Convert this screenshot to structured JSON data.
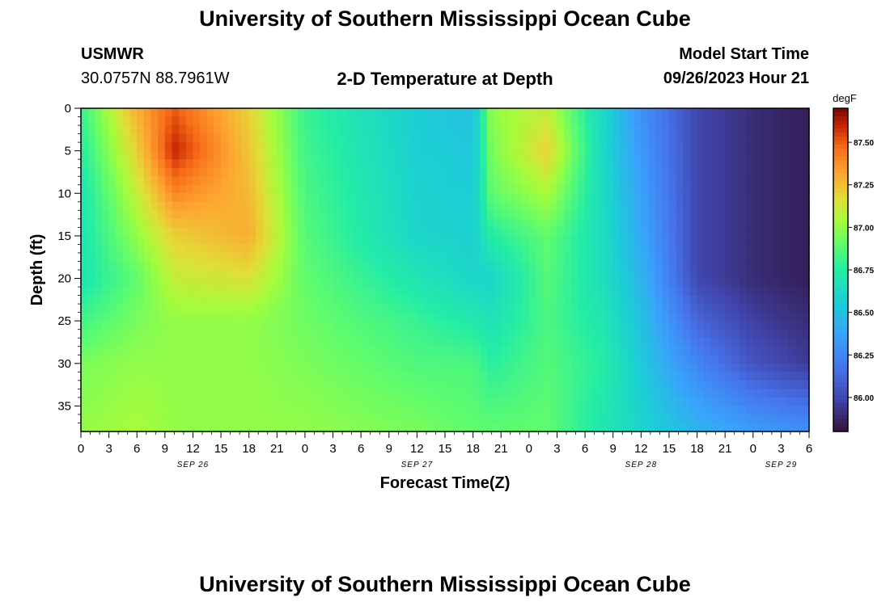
{
  "page": {
    "title_top": "University of Southern Mississippi Ocean Cube",
    "title_bottom": "University of Southern Mississippi Ocean Cube",
    "station": "USMWR",
    "coords": "30.0757N  88.7961W",
    "plot_title": "2-D Temperature at Depth",
    "model_start_label": "Model Start Time",
    "model_start_value": "09/26/2023 Hour 21"
  },
  "chart_data": {
    "type": "heatmap",
    "title": "2-D Temperature at Depth",
    "xlabel": "Forecast Time(Z)",
    "ylabel": "Depth (ft)",
    "x_tick_labels": [
      "0",
      "3",
      "6",
      "9",
      "12",
      "15",
      "18",
      "21",
      "0",
      "3",
      "6",
      "9",
      "12",
      "15",
      "18",
      "21",
      "0",
      "3",
      "6",
      "9",
      "12",
      "15",
      "18",
      "21",
      "0",
      "3",
      "6"
    ],
    "date_labels": [
      {
        "text": "SEP 26",
        "hour_index": 4
      },
      {
        "text": "SEP 27",
        "hour_index": 12
      },
      {
        "text": "SEP 28",
        "hour_index": 20
      },
      {
        "text": "SEP 29",
        "hour_index": 25
      }
    ],
    "x_range_hours": [
      0,
      78
    ],
    "y_ticks": [
      0,
      5,
      10,
      15,
      20,
      25,
      30,
      35
    ],
    "y_range_ft": [
      0,
      38
    ],
    "colorbar": {
      "units": "degF",
      "ticks": [
        "86.00",
        "86.25",
        "86.50",
        "86.75",
        "87.00",
        "87.25",
        "87.50"
      ],
      "range": [
        85.8,
        87.7
      ]
    },
    "temperature_profile_degF": [
      {
        "hour": 0,
        "depths_ft": [
          0,
          10,
          20,
          30,
          38
        ],
        "values": [
          86.8,
          86.7,
          86.7,
          86.95,
          87.0
        ]
      },
      {
        "hour": 6,
        "depths_ft": [
          0,
          10,
          20,
          30,
          38
        ],
        "values": [
          87.3,
          87.1,
          86.9,
          87.0,
          87.05
        ]
      },
      {
        "hour": 10,
        "depths_ft": [
          0,
          5,
          15,
          25,
          38
        ],
        "values": [
          87.5,
          87.6,
          87.2,
          87.0,
          87.0
        ]
      },
      {
        "hour": 18,
        "depths_ft": [
          0,
          15,
          25,
          38
        ],
        "values": [
          87.2,
          87.3,
          87.0,
          87.0
        ]
      },
      {
        "hour": 24,
        "depths_ft": [
          0,
          10,
          20,
          38
        ],
        "values": [
          86.8,
          86.85,
          86.9,
          87.0
        ]
      },
      {
        "hour": 36,
        "depths_ft": [
          0,
          15,
          25,
          38
        ],
        "values": [
          86.55,
          86.6,
          86.8,
          86.95
        ]
      },
      {
        "hour": 42,
        "depths_ft": [
          0,
          10,
          20,
          30,
          38
        ],
        "values": [
          86.5,
          86.55,
          86.6,
          86.85,
          86.9
        ]
      },
      {
        "hour": 44,
        "depths_ft": [
          0,
          10,
          20,
          38
        ],
        "values": [
          87.0,
          86.9,
          86.6,
          86.9
        ]
      },
      {
        "hour": 50,
        "depths_ft": [
          0,
          5,
          15,
          25,
          38
        ],
        "values": [
          87.1,
          87.2,
          86.9,
          86.85,
          86.9
        ]
      },
      {
        "hour": 56,
        "depths_ft": [
          0,
          20,
          30,
          38
        ],
        "values": [
          86.6,
          86.65,
          86.75,
          86.7
        ]
      },
      {
        "hour": 60,
        "depths_ft": [
          0,
          15,
          25,
          38
        ],
        "values": [
          86.3,
          86.4,
          86.5,
          86.6
        ]
      },
      {
        "hour": 66,
        "depths_ft": [
          0,
          20,
          30,
          38
        ],
        "values": [
          86.0,
          86.0,
          86.25,
          86.45
        ]
      },
      {
        "hour": 72,
        "depths_ft": [
          0,
          20,
          30,
          38
        ],
        "values": [
          85.9,
          85.9,
          86.05,
          86.35
        ]
      },
      {
        "hour": 78,
        "depths_ft": [
          0,
          20,
          30,
          38
        ],
        "values": [
          85.85,
          85.85,
          85.95,
          86.3
        ]
      }
    ]
  }
}
